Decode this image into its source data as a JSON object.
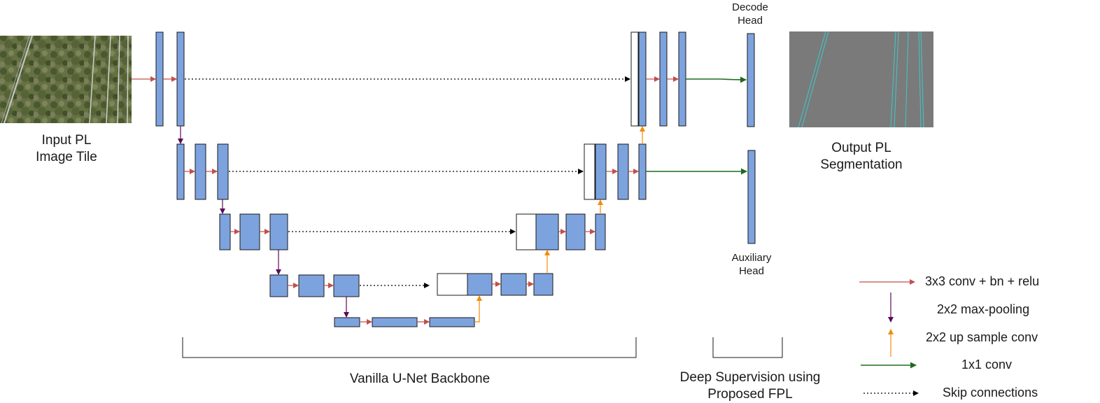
{
  "labels": {
    "input_line1": "Input PL",
    "input_line2": "Image Tile",
    "output_line1": "Output PL",
    "output_line2": "Segmentation",
    "decode_line1": "Decode",
    "decode_line2": "Head",
    "aux_line1": "Auxiliary",
    "aux_line2": "Head",
    "backbone": "Vanilla U-Net Backbone",
    "deep_sup_line1": "Deep Supervision using",
    "deep_sup_line2": "Proposed FPL"
  },
  "legend": [
    {
      "id": "conv3x3",
      "label": "3x3 conv + bn + relu",
      "color": "#c0504d",
      "style": "right-arrow"
    },
    {
      "id": "maxpool",
      "label": "2x2 max-pooling",
      "color": "#5b0a5b",
      "style": "down-arrow"
    },
    {
      "id": "upsample",
      "label": "2x2 up sample conv",
      "color": "#f28c0a",
      "style": "up-arrow"
    },
    {
      "id": "conv1x1",
      "label": "1x1 conv",
      "color": "#1e6b1e",
      "style": "right-arrow"
    },
    {
      "id": "skip",
      "label": "Skip connections",
      "color": "#000000",
      "style": "dotted-arrow"
    }
  ],
  "colors": {
    "block_fill": "#7da3de",
    "block_stroke": "#1a1a1a",
    "concat_fill": "#ffffff",
    "output_bg": "#7a7a7a",
    "output_lines": "#3fc9c9"
  }
}
